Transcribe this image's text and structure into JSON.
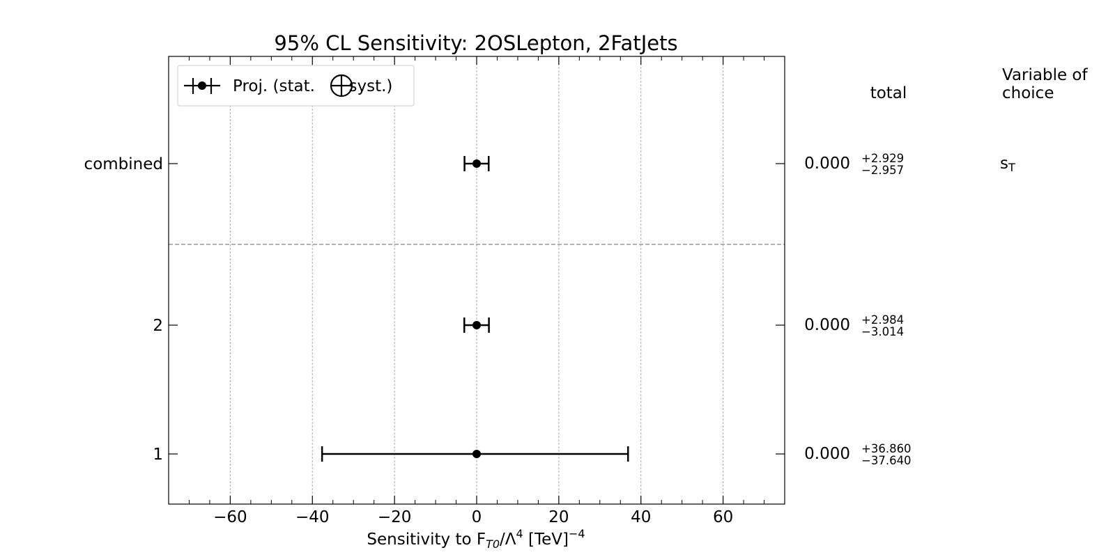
{
  "chart_data": {
    "type": "errorbar",
    "title": "95% CL Sensitivity: 2OSLepton, 2FatJets",
    "xlabel": {
      "prefix": "Sensitivity to F",
      "sub": "T0",
      "mid": "/Λ",
      "sup": "4",
      "unit": " [TeV]",
      "unit_sup": "−4"
    },
    "xlim": [
      -75,
      75
    ],
    "x_ticks": [
      -60,
      -40,
      -20,
      0,
      20,
      40,
      60
    ],
    "x_tick_labels": [
      "−60",
      "−40",
      "−20",
      "0",
      "20",
      "40",
      "60"
    ],
    "grid": true,
    "legend": {
      "placement": "top-left",
      "label_before": "Proj. (stat. ",
      "label_after": " syst.)"
    },
    "columns": {
      "total": "total",
      "variable": [
        "Variable of",
        "choice"
      ]
    },
    "rows": [
      {
        "label": "combined",
        "central": 0.0,
        "err_plus": 2.929,
        "err_minus": 2.957,
        "value_text": "0.000",
        "plus_text": "+2.929",
        "minus_text": "−2.957",
        "variable": "s",
        "variable_sub": "T"
      },
      {
        "label": "2",
        "central": 0.0,
        "err_plus": 2.984,
        "err_minus": 3.014,
        "value_text": "0.000",
        "plus_text": "+2.984",
        "minus_text": "−3.014",
        "variable": "",
        "variable_sub": ""
      },
      {
        "label": "1",
        "central": 0.0,
        "err_plus": 36.86,
        "err_minus": 37.64,
        "value_text": "0.000",
        "plus_text": "+36.860",
        "minus_text": "−37.640",
        "variable": "",
        "variable_sub": ""
      }
    ]
  }
}
